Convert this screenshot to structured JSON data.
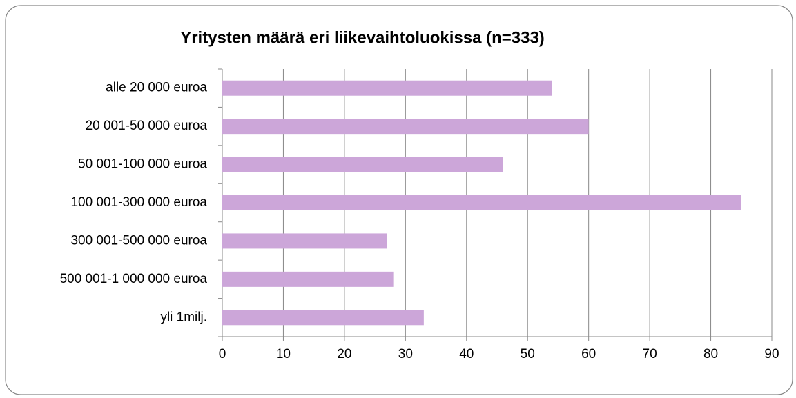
{
  "chart_data": {
    "type": "bar",
    "orientation": "horizontal",
    "title": "Yritysten määrä eri liikevaihtoluokissa (n=333)",
    "categories": [
      "alle 20 000 euroa",
      "20 001-50 000 euroa",
      "50 001-100 000 euroa",
      "100 001-300 000 euroa",
      "300 001-500 000 euroa",
      "500 001-1 000 000 euroa",
      "yli 1milj."
    ],
    "values": [
      54,
      60,
      46,
      85,
      27,
      28,
      33
    ],
    "color": "#cca6d9",
    "xlim": [
      0,
      90
    ],
    "xticks": [
      0,
      10,
      20,
      30,
      40,
      50,
      60,
      70,
      80,
      90
    ],
    "grid": true
  }
}
